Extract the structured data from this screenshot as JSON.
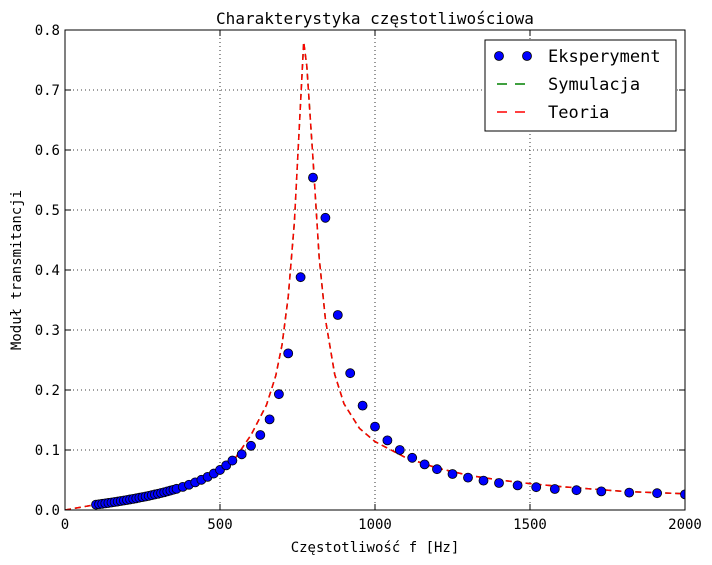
{
  "chart_data": {
    "type": "line",
    "title": "Charakterystyka częstotliwościowa",
    "xlabel": "Częstotliwość f [Hz]",
    "ylabel": "Moduł transmitancji",
    "xlim": [
      0,
      2000
    ],
    "ylim": [
      0,
      0.8
    ],
    "xticks": [
      0,
      500,
      1000,
      1500,
      2000
    ],
    "xtick_labels": [
      "0",
      "500",
      "1000",
      "1500",
      "2000"
    ],
    "yticks": [
      0.0,
      0.1,
      0.2,
      0.3,
      0.4,
      0.5,
      0.6,
      0.7,
      0.8
    ],
    "ytick_labels": [
      "0.0",
      "0.1",
      "0.2",
      "0.3",
      "0.4",
      "0.5",
      "0.6",
      "0.7",
      "0.8"
    ],
    "grid": true,
    "legend_position": "top-right",
    "series": [
      {
        "name": "Eksperyment",
        "style": "markers",
        "color": "#0000ff",
        "x": [
          100,
          110,
          120,
          130,
          140,
          150,
          160,
          170,
          180,
          190,
          200,
          210,
          220,
          230,
          240,
          250,
          260,
          270,
          280,
          290,
          300,
          310,
          320,
          330,
          340,
          350,
          360,
          380,
          400,
          420,
          440,
          460,
          480,
          500,
          520,
          540,
          570,
          600,
          630,
          660,
          690,
          720,
          760,
          800,
          840,
          880,
          920,
          960,
          1000,
          1040,
          1080,
          1120,
          1160,
          1200,
          1250,
          1300,
          1350,
          1400,
          1460,
          1520,
          1580,
          1650,
          1730,
          1820,
          1910,
          2000
        ],
        "y": [
          0.009,
          0.0096,
          0.0103,
          0.011,
          0.0118,
          0.0125,
          0.0133,
          0.0141,
          0.015,
          0.0158,
          0.0167,
          0.0176,
          0.0185,
          0.0195,
          0.0205,
          0.0215,
          0.0225,
          0.0236,
          0.0247,
          0.0259,
          0.0271,
          0.0283,
          0.0296,
          0.031,
          0.0324,
          0.0338,
          0.0353,
          0.0385,
          0.0421,
          0.046,
          0.0503,
          0.0552,
          0.0607,
          0.0668,
          0.0744,
          0.0824,
          0.0928,
          0.107,
          0.125,
          0.151,
          0.193,
          0.261,
          0.388,
          0.554,
          0.487,
          0.325,
          0.228,
          0.174,
          0.139,
          0.116,
          0.1,
          0.087,
          0.076,
          0.068,
          0.06,
          0.054,
          0.049,
          0.045,
          0.041,
          0.038,
          0.035,
          0.033,
          0.031,
          0.029,
          0.028,
          0.026
        ]
      },
      {
        "name": "Symulacja",
        "style": "dashed",
        "color": "#008000",
        "x": [
          0,
          100,
          200,
          300,
          400,
          500,
          550,
          600,
          650,
          680,
          700,
          720,
          740,
          760,
          770,
          780,
          800,
          820,
          840,
          870,
          900,
          950,
          1000,
          1100,
          1200,
          1300,
          1400,
          1500,
          1600,
          1700,
          1800,
          1900,
          2000
        ],
        "y": [
          0.0,
          0.009,
          0.0167,
          0.0271,
          0.0421,
          0.0668,
          0.087,
          0.125,
          0.175,
          0.224,
          0.275,
          0.355,
          0.48,
          0.68,
          0.78,
          0.74,
          0.585,
          0.42,
          0.318,
          0.226,
          0.177,
          0.136,
          0.114,
          0.087,
          0.07,
          0.058,
          0.05,
          0.044,
          0.039,
          0.035,
          0.031,
          0.029,
          0.027
        ]
      },
      {
        "name": "Teoria",
        "style": "dashed",
        "color": "#ff0000",
        "x": [
          0,
          100,
          200,
          300,
          400,
          500,
          550,
          600,
          650,
          680,
          700,
          720,
          740,
          760,
          770,
          780,
          800,
          820,
          840,
          870,
          900,
          950,
          1000,
          1100,
          1200,
          1300,
          1400,
          1500,
          1600,
          1700,
          1800,
          1900,
          2000
        ],
        "y": [
          0.0,
          0.009,
          0.0167,
          0.0271,
          0.0421,
          0.0668,
          0.087,
          0.125,
          0.175,
          0.224,
          0.275,
          0.355,
          0.48,
          0.68,
          0.78,
          0.74,
          0.585,
          0.42,
          0.318,
          0.226,
          0.177,
          0.136,
          0.114,
          0.087,
          0.07,
          0.058,
          0.05,
          0.044,
          0.039,
          0.035,
          0.031,
          0.029,
          0.027
        ]
      }
    ]
  }
}
